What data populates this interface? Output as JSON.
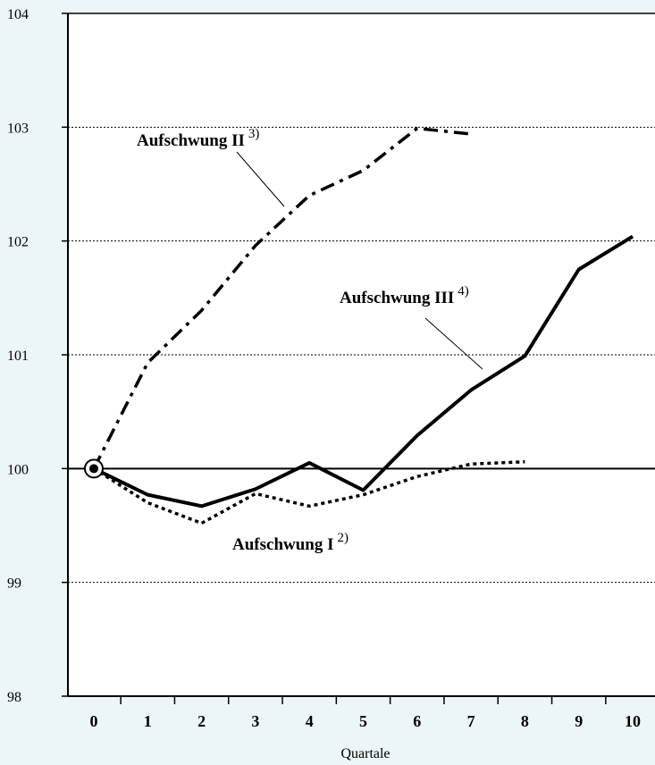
{
  "chart_data": {
    "type": "line",
    "xlabel": "Quartale",
    "ylabel": "",
    "categories": [
      "0",
      "1",
      "2",
      "3",
      "4",
      "5",
      "6",
      "7",
      "8",
      "9",
      "10"
    ],
    "yticks": [
      "98",
      "99",
      "100",
      "101",
      "102",
      "103",
      "104"
    ],
    "ylim": [
      98,
      104
    ],
    "xlim": [
      0,
      10
    ],
    "grid": "dotted horizontal lines",
    "baseline": 100,
    "series": [
      {
        "name": "Aufschwung I",
        "note": "2)",
        "style": "dotted",
        "x": [
          0,
          1,
          2,
          3,
          4,
          5,
          6,
          7,
          8
        ],
        "values": [
          100.0,
          99.7,
          99.52,
          99.78,
          99.67,
          99.77,
          99.93,
          100.04,
          100.06
        ]
      },
      {
        "name": "Aufschwung II",
        "note": "3)",
        "style": "dash-dot",
        "x": [
          0,
          1,
          2,
          3,
          4,
          5,
          6,
          7
        ],
        "values": [
          100.0,
          100.93,
          101.39,
          101.96,
          102.4,
          102.62,
          102.99,
          102.94
        ]
      },
      {
        "name": "Aufschwung III",
        "note": "4)",
        "style": "solid",
        "x": [
          0,
          1,
          2,
          3,
          4,
          5,
          6,
          7,
          8,
          9,
          10
        ],
        "values": [
          100.0,
          99.77,
          99.67,
          99.82,
          100.05,
          99.81,
          100.29,
          100.69,
          100.99,
          101.75,
          102.04
        ]
      }
    ],
    "colors": {
      "background": "#ecf5f8",
      "plot_area": "#ffffff",
      "lines": "#000000"
    }
  }
}
